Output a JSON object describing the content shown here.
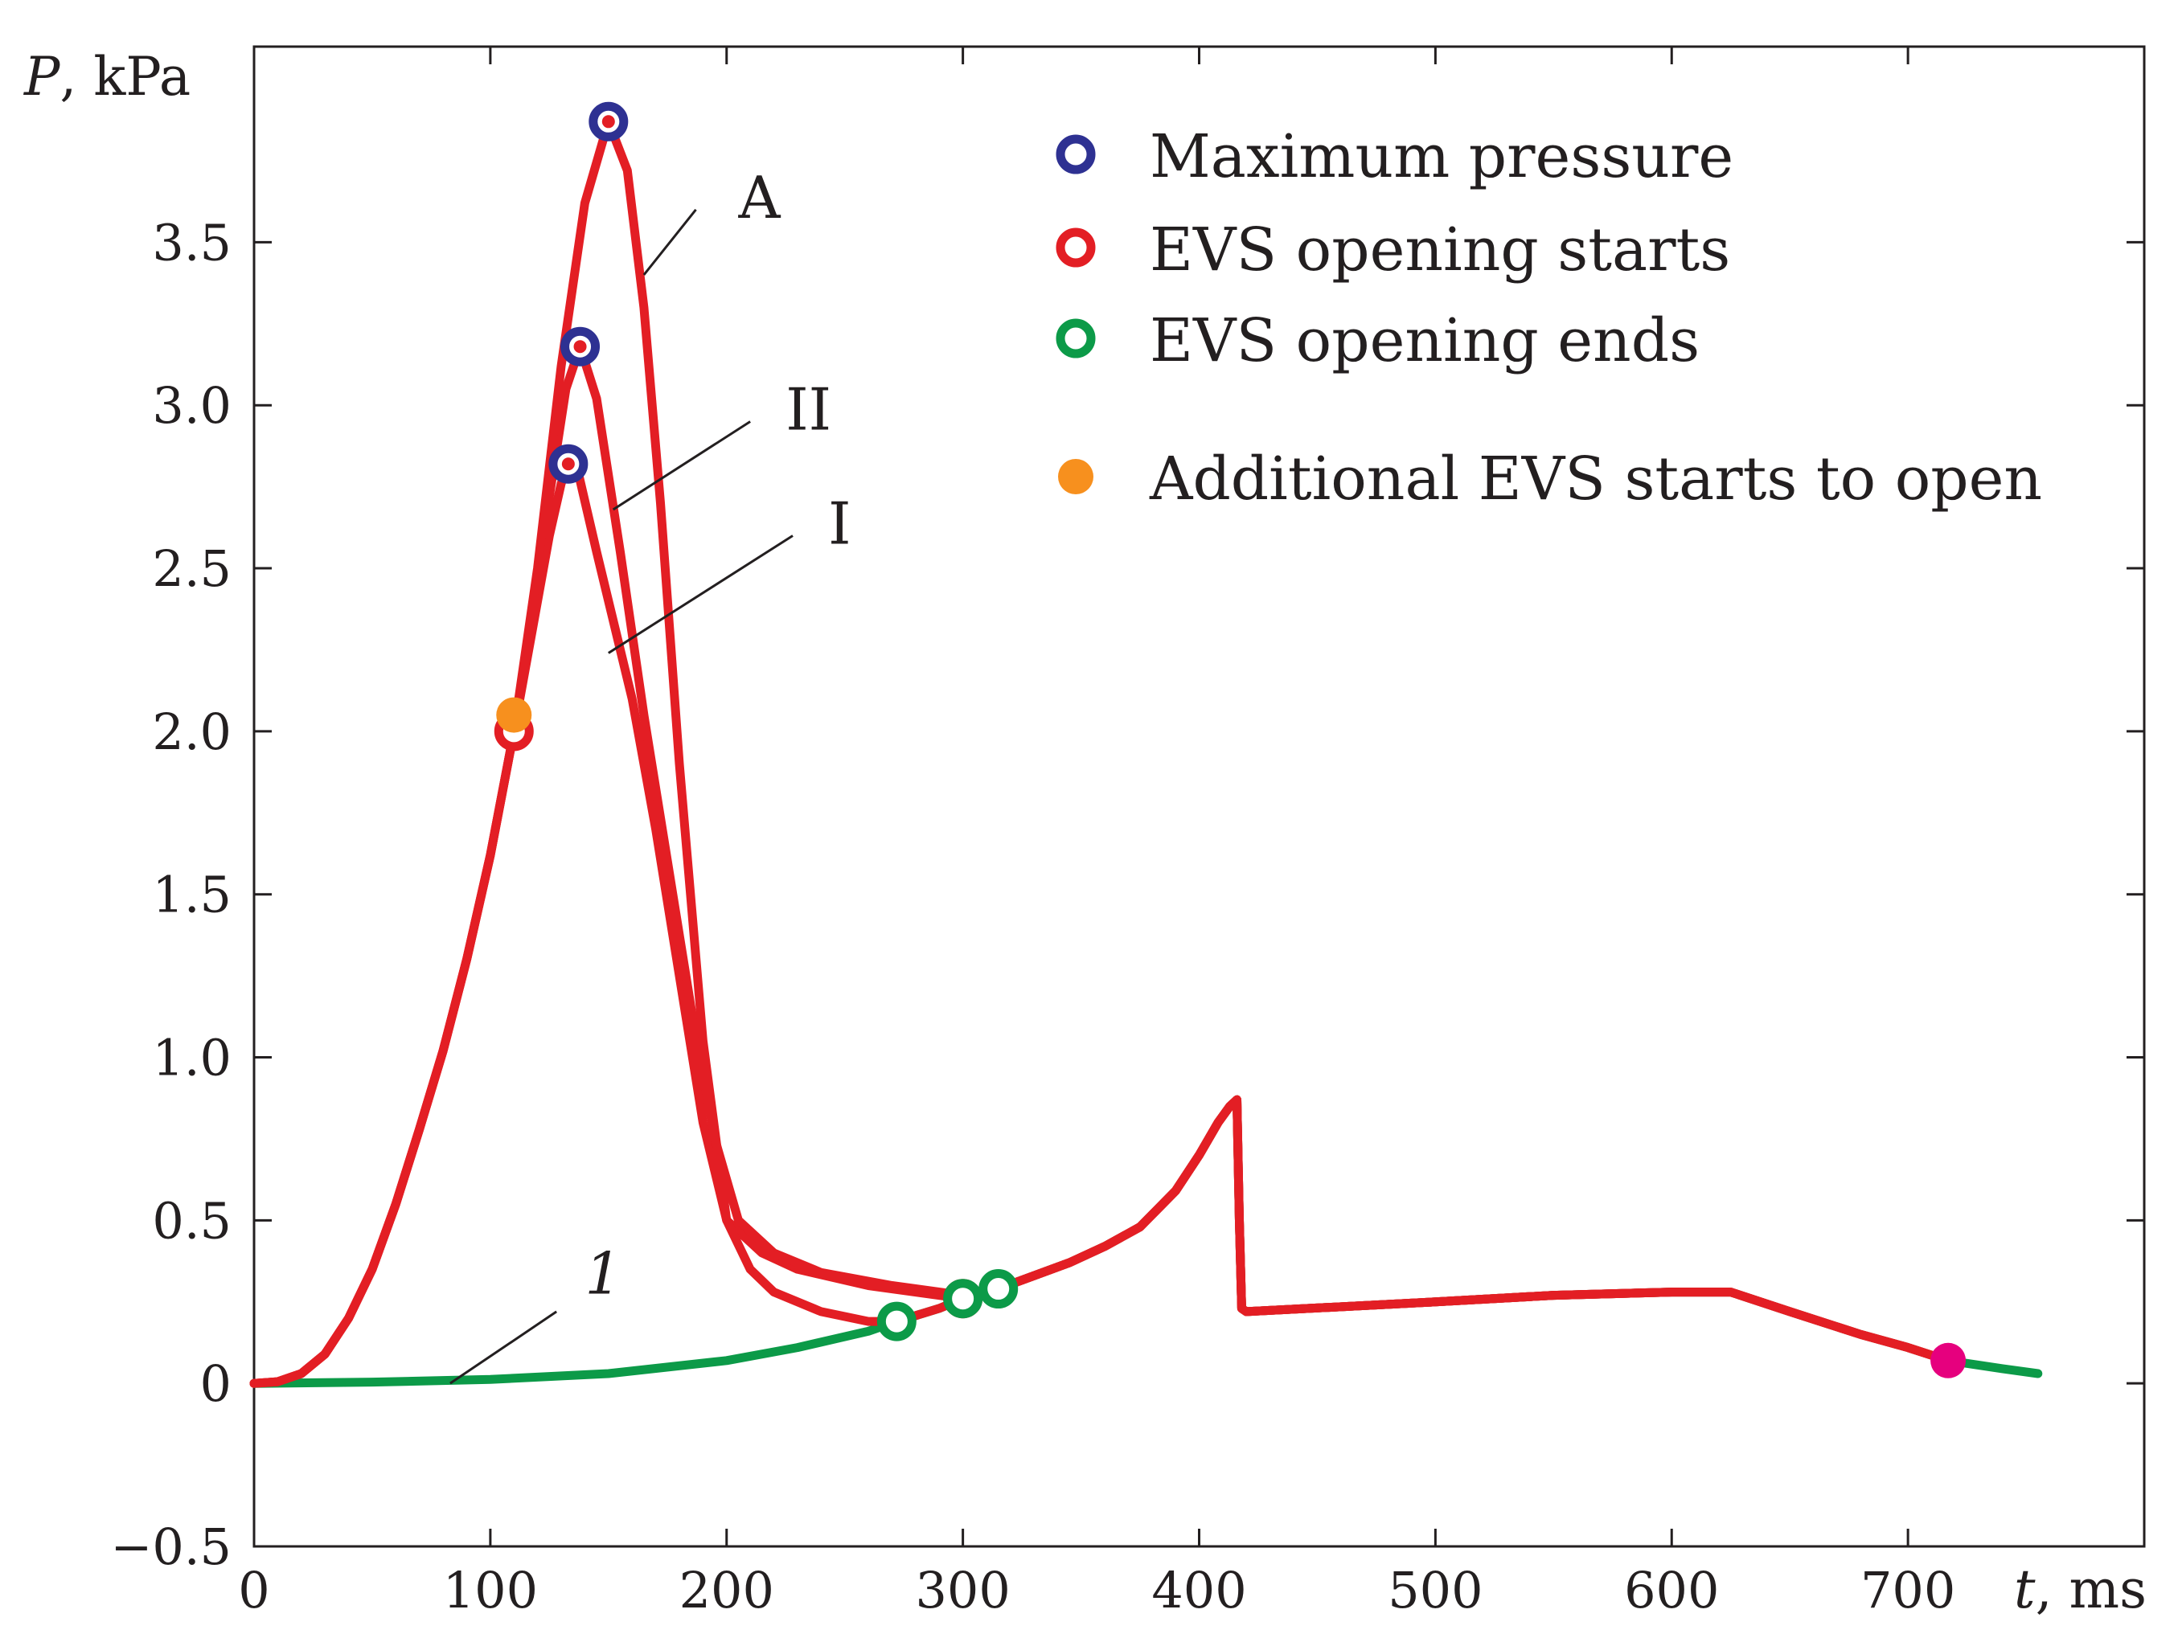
{
  "chart_data": {
    "type": "line",
    "ylabel": {
      "symbol": "P",
      "unit": ", kPa"
    },
    "xlabel": {
      "symbol": "t",
      "unit": ", ms"
    },
    "xlim": [
      0,
      800
    ],
    "ylim": [
      -0.5,
      4.1
    ],
    "xticks": [
      0,
      100,
      200,
      300,
      400,
      500,
      600,
      700
    ],
    "xtick_labels": [
      "0",
      "100",
      "200",
      "300",
      "400",
      "500",
      "600",
      "700"
    ],
    "yticks": [
      -0.5,
      0,
      0.5,
      1.0,
      1.5,
      2.0,
      2.5,
      3.0,
      3.5
    ],
    "ytick_labels": [
      "−0.5",
      "0",
      "0.5",
      "1.0",
      "1.5",
      "2.0",
      "2.5",
      "3.0",
      "3.5"
    ],
    "series": [
      {
        "name": "1",
        "color": "#0c9a48",
        "points": [
          [
            0,
            0
          ],
          [
            50,
            0.004
          ],
          [
            100,
            0.012
          ],
          [
            150,
            0.03
          ],
          [
            200,
            0.07
          ],
          [
            230,
            0.11
          ],
          [
            260,
            0.16
          ],
          [
            272,
            0.19
          ],
          [
            290,
            0.23
          ],
          [
            300,
            0.26
          ],
          [
            315,
            0.29
          ],
          [
            330,
            0.33
          ],
          [
            345,
            0.37
          ],
          [
            360,
            0.42
          ],
          [
            375,
            0.48
          ],
          [
            390,
            0.59
          ],
          [
            400,
            0.7
          ],
          [
            408,
            0.8
          ],
          [
            413,
            0.85
          ],
          [
            416,
            0.87
          ],
          [
            417,
            0.5
          ],
          [
            418,
            0.23
          ],
          [
            420,
            0.22
          ],
          [
            500,
            0.25
          ],
          [
            550,
            0.27
          ],
          [
            600,
            0.28
          ],
          [
            625,
            0.28
          ],
          [
            650,
            0.22
          ],
          [
            680,
            0.15
          ],
          [
            700,
            0.11
          ],
          [
            717,
            0.07
          ],
          [
            740,
            0.045
          ],
          [
            755,
            0.03
          ]
        ]
      },
      {
        "name": "I",
        "color": "#e31e24",
        "points": [
          [
            0,
            0
          ],
          [
            10,
            0.005
          ],
          [
            20,
            0.03
          ],
          [
            30,
            0.09
          ],
          [
            40,
            0.2
          ],
          [
            50,
            0.35
          ],
          [
            60,
            0.55
          ],
          [
            70,
            0.78
          ],
          [
            80,
            1.02
          ],
          [
            90,
            1.3
          ],
          [
            100,
            1.62
          ],
          [
            110,
            2.0
          ],
          [
            118,
            2.32
          ],
          [
            125,
            2.6
          ],
          [
            130,
            2.76
          ],
          [
            133,
            2.82
          ],
          [
            137,
            2.8
          ],
          [
            145,
            2.55
          ],
          [
            160,
            2.1
          ],
          [
            170,
            1.7
          ],
          [
            180,
            1.25
          ],
          [
            190,
            0.8
          ],
          [
            200,
            0.5
          ],
          [
            215,
            0.4
          ],
          [
            230,
            0.35
          ],
          [
            260,
            0.3
          ],
          [
            300,
            0.26
          ],
          [
            315,
            0.29
          ],
          [
            330,
            0.33
          ],
          [
            345,
            0.37
          ],
          [
            360,
            0.42
          ],
          [
            375,
            0.48
          ],
          [
            390,
            0.59
          ],
          [
            400,
            0.7
          ],
          [
            408,
            0.8
          ],
          [
            413,
            0.85
          ],
          [
            416,
            0.87
          ],
          [
            417,
            0.5
          ],
          [
            418,
            0.23
          ],
          [
            420,
            0.22
          ],
          [
            500,
            0.25
          ],
          [
            550,
            0.27
          ],
          [
            600,
            0.28
          ],
          [
            625,
            0.28
          ],
          [
            650,
            0.22
          ],
          [
            680,
            0.15
          ],
          [
            700,
            0.11
          ],
          [
            717,
            0.07
          ]
        ]
      },
      {
        "name": "II",
        "color": "#e31e24",
        "points": [
          [
            0,
            0
          ],
          [
            10,
            0.005
          ],
          [
            20,
            0.03
          ],
          [
            30,
            0.09
          ],
          [
            40,
            0.2
          ],
          [
            50,
            0.35
          ],
          [
            60,
            0.55
          ],
          [
            70,
            0.78
          ],
          [
            80,
            1.02
          ],
          [
            90,
            1.3
          ],
          [
            100,
            1.62
          ],
          [
            110,
            2.0
          ],
          [
            118,
            2.35
          ],
          [
            125,
            2.72
          ],
          [
            132,
            3.05
          ],
          [
            138,
            3.18
          ],
          [
            145,
            3.02
          ],
          [
            155,
            2.55
          ],
          [
            165,
            2.05
          ],
          [
            175,
            1.6
          ],
          [
            185,
            1.15
          ],
          [
            195,
            0.75
          ],
          [
            205,
            0.5
          ],
          [
            220,
            0.4
          ],
          [
            240,
            0.34
          ],
          [
            270,
            0.3
          ],
          [
            300,
            0.27
          ],
          [
            315,
            0.29
          ],
          [
            330,
            0.33
          ],
          [
            345,
            0.37
          ],
          [
            360,
            0.42
          ],
          [
            375,
            0.48
          ],
          [
            390,
            0.59
          ],
          [
            400,
            0.7
          ],
          [
            408,
            0.8
          ],
          [
            413,
            0.85
          ],
          [
            416,
            0.87
          ],
          [
            417,
            0.5
          ],
          [
            418,
            0.23
          ],
          [
            420,
            0.22
          ],
          [
            500,
            0.25
          ],
          [
            550,
            0.27
          ],
          [
            600,
            0.28
          ],
          [
            625,
            0.28
          ],
          [
            650,
            0.22
          ],
          [
            680,
            0.15
          ],
          [
            700,
            0.11
          ],
          [
            717,
            0.07
          ]
        ]
      },
      {
        "name": "A",
        "color": "#e31e24",
        "points": [
          [
            0,
            0
          ],
          [
            10,
            0.005
          ],
          [
            20,
            0.03
          ],
          [
            30,
            0.09
          ],
          [
            40,
            0.2
          ],
          [
            50,
            0.35
          ],
          [
            60,
            0.55
          ],
          [
            70,
            0.78
          ],
          [
            80,
            1.02
          ],
          [
            90,
            1.3
          ],
          [
            100,
            1.62
          ],
          [
            110,
            2.0
          ],
          [
            120,
            2.5
          ],
          [
            130,
            3.12
          ],
          [
            140,
            3.62
          ],
          [
            150,
            3.87
          ],
          [
            158,
            3.72
          ],
          [
            165,
            3.3
          ],
          [
            172,
            2.7
          ],
          [
            180,
            1.9
          ],
          [
            190,
            1.05
          ],
          [
            200,
            0.5
          ],
          [
            210,
            0.35
          ],
          [
            220,
            0.28
          ],
          [
            240,
            0.22
          ],
          [
            260,
            0.19
          ],
          [
            272,
            0.19
          ],
          [
            290,
            0.23
          ],
          [
            300,
            0.26
          ],
          [
            315,
            0.29
          ],
          [
            330,
            0.33
          ],
          [
            345,
            0.37
          ],
          [
            360,
            0.42
          ],
          [
            375,
            0.48
          ],
          [
            390,
            0.59
          ],
          [
            400,
            0.7
          ],
          [
            408,
            0.8
          ],
          [
            413,
            0.85
          ],
          [
            416,
            0.87
          ],
          [
            417,
            0.5
          ],
          [
            418,
            0.23
          ],
          [
            420,
            0.22
          ],
          [
            500,
            0.25
          ],
          [
            550,
            0.27
          ],
          [
            600,
            0.28
          ],
          [
            625,
            0.28
          ],
          [
            650,
            0.22
          ],
          [
            680,
            0.15
          ],
          [
            700,
            0.11
          ],
          [
            717,
            0.07
          ]
        ]
      }
    ],
    "markers": {
      "max_pressure": [
        [
          150,
          3.87
        ],
        [
          138,
          3.18
        ],
        [
          133,
          2.82
        ]
      ],
      "evs_opening_starts": [
        [
          110,
          2.0
        ],
        [
          150,
          3.87
        ],
        [
          138,
          3.18
        ],
        [
          133,
          2.82
        ],
        [
          300,
          0.26
        ]
      ],
      "evs_opening_ends": [
        [
          272,
          0.19
        ],
        [
          300,
          0.26
        ],
        [
          315,
          0.29
        ]
      ],
      "additional_evs": [
        [
          110,
          2.05
        ]
      ],
      "special": [
        [
          717,
          0.07
        ]
      ]
    },
    "marker_colors": {
      "max_pressure": "#2e3192",
      "evs_opening_starts": "#e31e24",
      "evs_opening_ends": "#0c9a48",
      "additional_evs": "#f7901e",
      "special": "#e6007e"
    },
    "annotations": [
      {
        "text": "A",
        "italic": false,
        "line_from": [
          165,
          3.4
        ],
        "line_to": [
          187,
          3.6
        ],
        "text_at": [
          205,
          3.6
        ]
      },
      {
        "text": "II",
        "italic": false,
        "line_from": [
          152,
          2.68
        ],
        "line_to": [
          210,
          2.95
        ],
        "text_at": [
          225,
          2.95
        ]
      },
      {
        "text": "I",
        "italic": false,
        "line_from": [
          150,
          2.24
        ],
        "line_to": [
          228,
          2.6
        ],
        "text_at": [
          243,
          2.6
        ]
      },
      {
        "text": "1",
        "italic": true,
        "line_from": [
          83,
          0.0
        ],
        "line_to": [
          128,
          0.22
        ],
        "text_at": [
          140,
          0.3
        ]
      }
    ],
    "legend": {
      "position": "top-right",
      "entries": [
        {
          "label": "Maximum pressure",
          "marker": "max_pressure"
        },
        {
          "label": "EVS opening starts",
          "marker": "evs_opening_starts"
        },
        {
          "label": "EVS opening ends",
          "marker": "evs_opening_ends"
        },
        {
          "label": "Additional EVS starts to open",
          "marker": "additional_evs"
        }
      ]
    }
  }
}
